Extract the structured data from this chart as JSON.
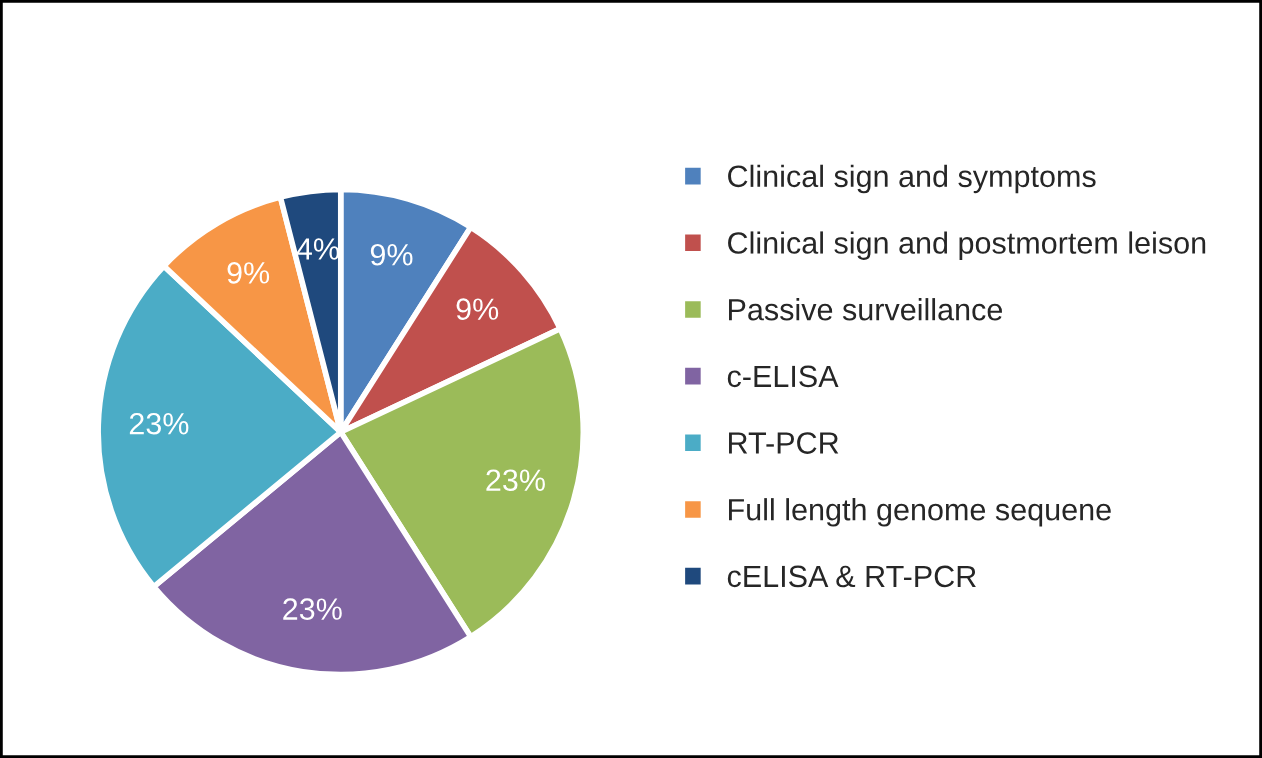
{
  "chart_data": {
    "type": "pie",
    "categories": [
      "Clinical sign and symptoms",
      "Clinical sign and postmortem leison",
      "Passive surveillance",
      "c-ELISA",
      "RT-PCR",
      "Full length genome sequene",
      "cELISA & RT-PCR"
    ],
    "values": [
      9,
      9,
      23,
      23,
      23,
      9,
      4
    ],
    "value_labels": [
      "9%",
      "9%",
      "23%",
      "23%",
      "23%",
      "9%",
      "4%"
    ],
    "colors": [
      "#4f81bd",
      "#c0504d",
      "#9bbb59",
      "#8064a2",
      "#4bacc6",
      "#f79646",
      "#1f497d"
    ],
    "legend": "right"
  }
}
